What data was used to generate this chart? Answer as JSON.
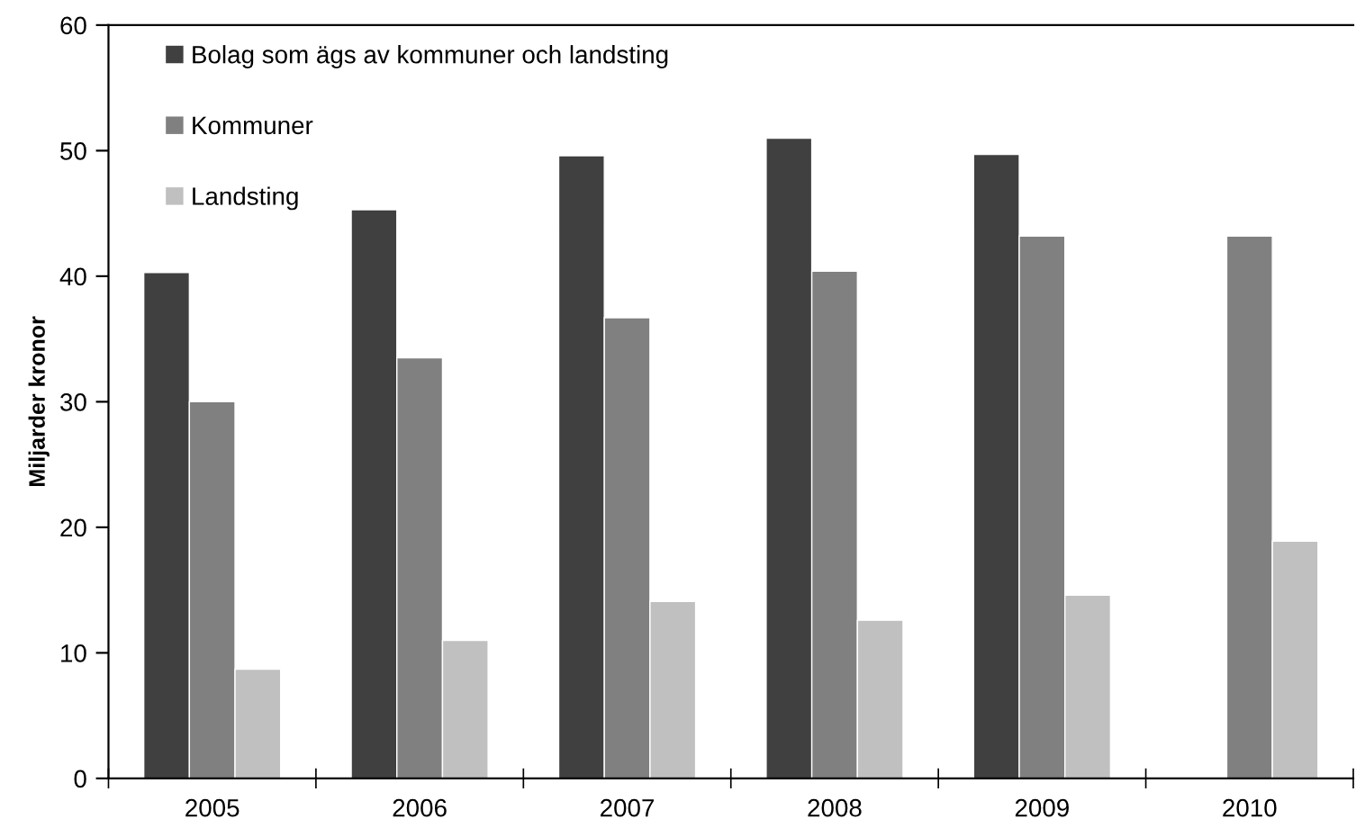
{
  "chart_data": {
    "type": "bar",
    "ylabel": "Miljarder kronor",
    "categories": [
      "2005",
      "2006",
      "2007",
      "2008",
      "2009",
      "2010"
    ],
    "series": [
      {
        "name": "Bolag som ägs av kommuner och landsting",
        "color": "#404040",
        "values": [
          40.3,
          45.3,
          49.6,
          51.0,
          49.7,
          null
        ]
      },
      {
        "name": "Kommuner",
        "color": "#808080",
        "values": [
          30.0,
          33.5,
          36.7,
          40.4,
          43.2,
          43.2
        ]
      },
      {
        "name": "Landsting",
        "color": "#c0c0c0",
        "values": [
          8.7,
          11.0,
          14.1,
          12.6,
          14.6,
          18.9
        ]
      }
    ],
    "ylim": [
      0,
      60
    ],
    "yticks": [
      0,
      10,
      20,
      30,
      40,
      50,
      60
    ],
    "grid": false,
    "legend": "top left"
  }
}
